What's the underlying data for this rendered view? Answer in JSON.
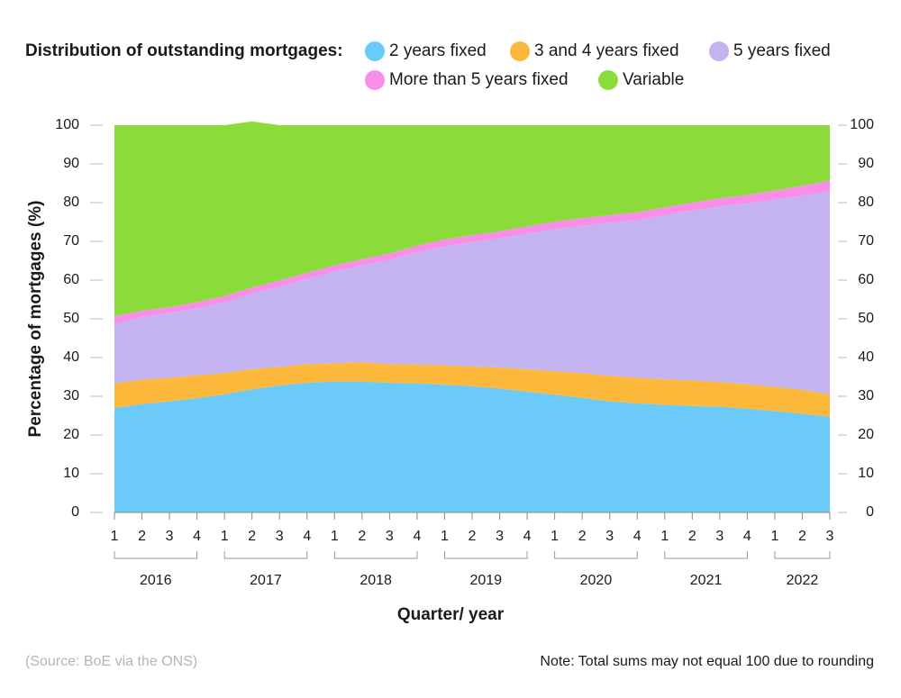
{
  "chart_data": {
    "type": "stacked-area",
    "legend_title": "Distribution of outstanding mortgages:",
    "ylabel": "Percentage of mortgages (%)",
    "xlabel": "Quarter/ year",
    "source": "(Source: BoE via the ONS)",
    "note": "Note: Total sums may not equal 100 due to rounding",
    "categories": [
      "1",
      "2",
      "3",
      "4",
      "1",
      "2",
      "3",
      "4",
      "1",
      "2",
      "3",
      "4",
      "1",
      "2",
      "3",
      "4",
      "1",
      "2",
      "3",
      "4",
      "1",
      "2",
      "3",
      "4",
      "1",
      "2",
      "3"
    ],
    "years": [
      "2016",
      "2017",
      "2018",
      "2019",
      "2020",
      "2021",
      "2022"
    ],
    "ylim": [
      0,
      100
    ],
    "yticks": [
      0,
      10,
      20,
      30,
      40,
      50,
      60,
      70,
      80,
      90,
      100
    ],
    "series": [
      {
        "name": "2 years fixed",
        "color": "#6ccaf8",
        "values": [
          27,
          28,
          28.7,
          29.5,
          30.5,
          31.8,
          32.8,
          33.5,
          33.8,
          33.8,
          33.5,
          33.3,
          33,
          32.6,
          32,
          31.2,
          30.4,
          29.6,
          28.7,
          28.2,
          27.8,
          27.5,
          27.3,
          26.8,
          26.2,
          25.5,
          24.7
        ]
      },
      {
        "name": "3 and 4 years fixed",
        "color": "#fbb83a",
        "values": [
          6.3,
          6.3,
          6.1,
          5.9,
          5.5,
          5.2,
          4.8,
          4.8,
          4.7,
          5,
          4.8,
          4.9,
          5,
          5.1,
          5.4,
          5.8,
          6.1,
          6.4,
          6.6,
          6.6,
          6.6,
          6.6,
          6.4,
          6.3,
          6.2,
          6.2,
          5.8
        ]
      },
      {
        "name": "5 years fixed",
        "color": "#c4b3f1",
        "values": [
          15.3,
          16.2,
          16.7,
          17.3,
          18.3,
          19.5,
          20.7,
          22,
          23.7,
          25,
          26.9,
          29,
          30.7,
          32.1,
          33.4,
          35,
          36.7,
          38,
          39.5,
          40.7,
          42.4,
          43.9,
          45.3,
          46.7,
          48.4,
          50.1,
          52.4
        ]
      },
      {
        "name": "More than 5 years fixed",
        "color": "#f98ee8",
        "values": [
          2.1,
          1.6,
          1.5,
          1.6,
          1.6,
          1.6,
          1.6,
          1.6,
          1.6,
          1.6,
          1.7,
          1.7,
          1.8,
          1.8,
          1.8,
          1.9,
          1.9,
          2,
          2,
          2,
          2,
          2,
          2.1,
          2.2,
          2.3,
          2.6,
          2.8
        ]
      },
      {
        "name": "Variable",
        "color": "#8bdc3a",
        "values": [
          49.3,
          47.9,
          47,
          45.7,
          44.1,
          42.9,
          40.1,
          38.1,
          36.2,
          34.6,
          33.1,
          31.1,
          29.5,
          28.4,
          27.4,
          26.1,
          24.9,
          24,
          23.2,
          22.5,
          21.2,
          20,
          18.9,
          18,
          16.9,
          15.6,
          14.3
        ]
      }
    ]
  }
}
